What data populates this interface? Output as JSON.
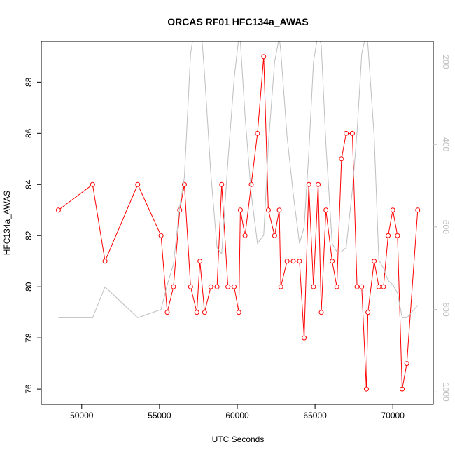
{
  "chart_data": {
    "type": "line",
    "title": "ORCAS RF01 HFC134a_AWAS",
    "xlabel": "UTC Seconds",
    "ylabel": "HFC134a_AWAS",
    "xlim": [
      47400,
      72600
    ],
    "ylim": [
      75.4,
      89.6
    ],
    "x_ticks": [
      50000,
      55000,
      60000,
      65000,
      70000
    ],
    "x_tick_labels": [
      "50000",
      "55000",
      "60000",
      "65000",
      "70000"
    ],
    "y_ticks": [
      76,
      78,
      80,
      82,
      84,
      86,
      88
    ],
    "y_tick_labels": [
      "76",
      "78",
      "80",
      "82",
      "84",
      "86",
      "88"
    ],
    "y2_lim": [
      1030,
      150
    ],
    "y2_ticks": [
      200,
      400,
      600,
      800,
      1000
    ],
    "y2_tick_labels": [
      "200",
      "400",
      "600",
      "800",
      "1000"
    ],
    "series": [
      {
        "axis": "left",
        "color": "#ff0000",
        "style": "line+open-circle",
        "x": [
          48500,
          50700,
          51500,
          53600,
          55100,
          55500,
          55900,
          56300,
          56600,
          57000,
          57400,
          57600,
          57900,
          58300,
          58700,
          59000,
          59400,
          59800,
          60100,
          60200,
          60500,
          60900,
          61300,
          61700,
          62000,
          62400,
          62700,
          62800,
          63200,
          63600,
          64000,
          64300,
          64600,
          64900,
          65200,
          65400,
          65700,
          66100,
          66400,
          66700,
          67000,
          67400,
          67700,
          68000,
          68300,
          68400,
          68800,
          69100,
          69400,
          69700,
          70000,
          70300,
          70600,
          70900,
          71600
        ],
        "y": [
          83,
          84,
          81,
          84,
          82,
          79,
          80,
          83,
          84,
          80,
          79,
          81,
          79,
          80,
          80,
          84,
          80,
          80,
          79,
          83,
          82,
          84,
          86,
          89,
          83,
          82,
          83,
          80,
          81,
          81,
          81,
          78,
          84,
          80,
          84,
          79,
          83,
          81,
          80,
          85,
          86,
          86,
          80,
          80,
          76,
          79,
          81,
          80,
          80,
          82,
          83,
          82,
          76,
          77,
          83
        ]
      },
      {
        "axis": "right",
        "color": "#bebebe",
        "style": "line",
        "x": [
          48500,
          50700,
          51500,
          53600,
          55100,
          55500,
          55900,
          56300,
          56600,
          57000,
          57400,
          57600,
          57900,
          58300,
          58700,
          59000,
          59400,
          59800,
          60100,
          60200,
          60500,
          60900,
          61300,
          61700,
          62000,
          62400,
          62700,
          62800,
          63200,
          63600,
          64000,
          64300,
          64600,
          64900,
          65200,
          65400,
          65700,
          66100,
          66400,
          66700,
          67000,
          67400,
          67700,
          68000,
          68300,
          68400,
          68800,
          69100,
          69400,
          69700,
          70000,
          70300,
          70600,
          70900,
          71600
        ],
        "y": [
          820,
          820,
          745,
          820,
          800,
          740,
          690,
          550,
          480,
          180,
          80,
          80,
          230,
          470,
          650,
          665,
          440,
          240,
          140,
          150,
          330,
          520,
          640,
          620,
          400,
          200,
          140,
          175,
          380,
          520,
          640,
          600,
          420,
          200,
          130,
          160,
          400,
          640,
          660,
          660,
          650,
          510,
          370,
          180,
          130,
          160,
          380,
          680,
          700,
          730,
          740,
          760,
          820,
          820,
          790
        ]
      }
    ]
  }
}
